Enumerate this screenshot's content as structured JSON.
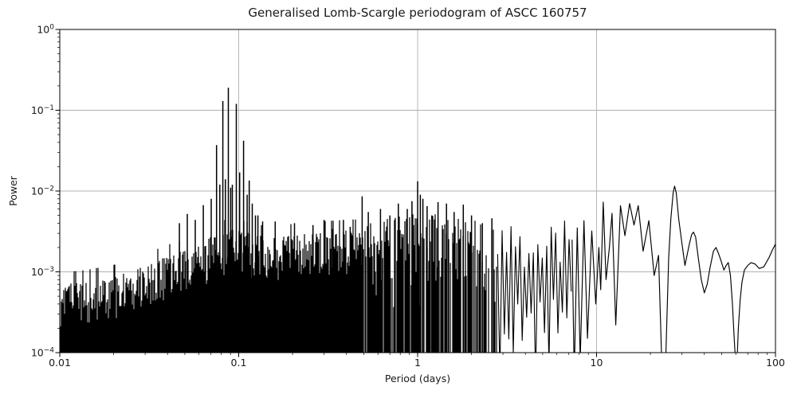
{
  "chart_data": {
    "type": "line",
    "title": "Generalised Lomb-Scargle periodogram of ASCC 160757",
    "xlabel": "Period (days)",
    "ylabel": "Power",
    "xscale": "log",
    "yscale": "log",
    "xlim": [
      0.01,
      100
    ],
    "ylim": [
      0.0001,
      1
    ],
    "x_ticks": [
      0.01,
      0.1,
      1,
      10,
      100
    ],
    "x_tick_labels": [
      "0.01",
      "0.1",
      "1",
      "10",
      "100"
    ],
    "y_tick_exponents": [
      0,
      -1,
      -2,
      -3,
      -4
    ],
    "grid": true,
    "legend": "none",
    "line_color": "#000000",
    "grid_color": "#b0b0b0",
    "background_color": "#ffffff",
    "peak_format": [
      "period_days",
      "power"
    ],
    "main_peaks": [
      [
        0.0466,
        0.004
      ],
      [
        0.0516,
        0.0052
      ],
      [
        0.0572,
        0.0044
      ],
      [
        0.0634,
        0.0067
      ],
      [
        0.0702,
        0.008
      ],
      [
        0.0752,
        0.037
      ],
      [
        0.0784,
        0.012
      ],
      [
        0.0815,
        0.13
      ],
      [
        0.0843,
        0.014
      ],
      [
        0.0875,
        0.19
      ],
      [
        0.0902,
        0.011
      ],
      [
        0.0921,
        0.012
      ],
      [
        0.097,
        0.12
      ],
      [
        0.1012,
        0.017
      ],
      [
        0.1065,
        0.042
      ],
      [
        0.1115,
        0.009
      ],
      [
        0.1145,
        0.0135
      ],
      [
        0.119,
        0.007
      ],
      [
        0.124,
        0.005
      ],
      [
        0.128,
        0.005
      ],
      [
        0.136,
        0.0042
      ],
      [
        0.16,
        0.0042
      ],
      [
        0.205,
        0.004
      ],
      [
        0.26,
        0.0038
      ],
      [
        0.3,
        0.0044
      ],
      [
        0.335,
        0.0034
      ],
      [
        0.385,
        0.0044
      ],
      [
        0.42,
        0.0036
      ],
      [
        0.49,
        0.0086
      ],
      [
        0.53,
        0.0055
      ],
      [
        0.62,
        0.006
      ],
      [
        0.7,
        0.005
      ],
      [
        0.78,
        0.007
      ],
      [
        0.875,
        0.006
      ],
      [
        0.93,
        0.0075
      ],
      [
        1.0,
        0.0132
      ],
      [
        1.035,
        0.009
      ],
      [
        1.07,
        0.008
      ],
      [
        1.13,
        0.0065
      ],
      [
        1.2,
        0.005
      ],
      [
        1.3,
        0.0073
      ],
      [
        1.45,
        0.007
      ],
      [
        1.6,
        0.0055
      ],
      [
        1.8,
        0.0068
      ],
      [
        2.0,
        0.005
      ],
      [
        2.3,
        0.004
      ],
      [
        2.6,
        0.0046
      ]
    ],
    "noise_envelope_short": [
      [
        0.01,
        0.00072
      ],
      [
        0.014,
        0.00078
      ],
      [
        0.02,
        0.0009
      ],
      [
        0.028,
        0.00115
      ],
      [
        0.04,
        0.0016
      ],
      [
        0.055,
        0.002
      ],
      [
        0.07,
        0.0027
      ],
      [
        0.085,
        0.0033
      ],
      [
        0.1,
        0.0033
      ],
      [
        0.12,
        0.0029
      ],
      [
        0.15,
        0.0027
      ],
      [
        0.2,
        0.0029
      ],
      [
        0.27,
        0.0031
      ],
      [
        0.35,
        0.0032
      ],
      [
        0.45,
        0.0033
      ],
      [
        0.5,
        0.0035
      ]
    ],
    "noise_envelope_mid": [
      [
        0.5,
        0.0042
      ],
      [
        0.7,
        0.0046
      ],
      [
        1.0,
        0.0055
      ],
      [
        1.4,
        0.005
      ],
      [
        2.0,
        0.0045
      ],
      [
        2.8,
        0.0038
      ]
    ],
    "noise_regions": {
      "dense_fill": {
        "from": 0.01,
        "to": 0.5,
        "floor": 0.0001
      },
      "gappy_fill": {
        "from": 0.5,
        "to": 2.8,
        "floor": 0.00032,
        "gap_fraction_start": 0.08,
        "gap_fraction_end": 0.38
      },
      "spiky_line": {
        "from": 2.8,
        "to": 7.3,
        "peak_range": [
          0.0011,
          0.0045
        ],
        "trough_range": [
          2.5e-05,
          0.0006
        ]
      }
    },
    "smooth_tail": [
      [
        7.3,
        0.0025
      ],
      [
        7.5,
        5e-05
      ],
      [
        7.8,
        0.0035
      ],
      [
        8.1,
        8e-05
      ],
      [
        8.5,
        0.0043
      ],
      [
        8.9,
        0.00015
      ],
      [
        9.4,
        0.0032
      ],
      [
        9.9,
        0.0004
      ],
      [
        10.3,
        0.002
      ],
      [
        10.55,
        0.0006
      ],
      [
        10.9,
        0.0073
      ],
      [
        11.3,
        0.0008
      ],
      [
        11.8,
        0.002
      ],
      [
        12.2,
        0.0053
      ],
      [
        12.8,
        0.00022
      ],
      [
        13.6,
        0.0066
      ],
      [
        14.4,
        0.0028
      ],
      [
        15.3,
        0.007
      ],
      [
        16.2,
        0.0038
      ],
      [
        17.1,
        0.0066
      ],
      [
        18.2,
        0.0018
      ],
      [
        19.6,
        0.0043
      ],
      [
        21.0,
        0.0009
      ],
      [
        22.2,
        0.0016
      ],
      [
        23.2,
        6e-05
      ],
      [
        24.3,
        7e-05
      ],
      [
        25.3,
        0.0015
      ],
      [
        26.0,
        0.0045
      ],
      [
        26.8,
        0.0095
      ],
      [
        27.3,
        0.0115
      ],
      [
        27.9,
        0.0095
      ],
      [
        28.8,
        0.0045
      ],
      [
        29.8,
        0.0025
      ],
      [
        31.2,
        0.0012
      ],
      [
        33.0,
        0.0022
      ],
      [
        34.0,
        0.0029
      ],
      [
        34.8,
        0.0031
      ],
      [
        35.8,
        0.0027
      ],
      [
        37.0,
        0.0015
      ],
      [
        38.5,
        0.0008
      ],
      [
        40.0,
        0.00055
      ],
      [
        41.5,
        0.0007
      ],
      [
        43.0,
        0.0011
      ],
      [
        45.0,
        0.0018
      ],
      [
        46.5,
        0.002
      ],
      [
        48.0,
        0.0017
      ],
      [
        49.5,
        0.0014
      ],
      [
        51.5,
        0.00105
      ],
      [
        53.0,
        0.0012
      ],
      [
        54.5,
        0.0013
      ],
      [
        56.0,
        0.0009
      ],
      [
        57.5,
        0.0004
      ],
      [
        58.8,
        0.00015
      ],
      [
        60.5,
        5e-05
      ],
      [
        62.0,
        0.0002
      ],
      [
        63.5,
        0.00045
      ],
      [
        65.0,
        0.00075
      ],
      [
        67.0,
        0.00105
      ],
      [
        70.0,
        0.0012
      ],
      [
        73.0,
        0.0013
      ],
      [
        77.0,
        0.00125
      ],
      [
        81.0,
        0.0011
      ],
      [
        86.0,
        0.00115
      ],
      [
        92.0,
        0.0015
      ],
      [
        96.0,
        0.00185
      ],
      [
        100.0,
        0.0022
      ]
    ]
  }
}
